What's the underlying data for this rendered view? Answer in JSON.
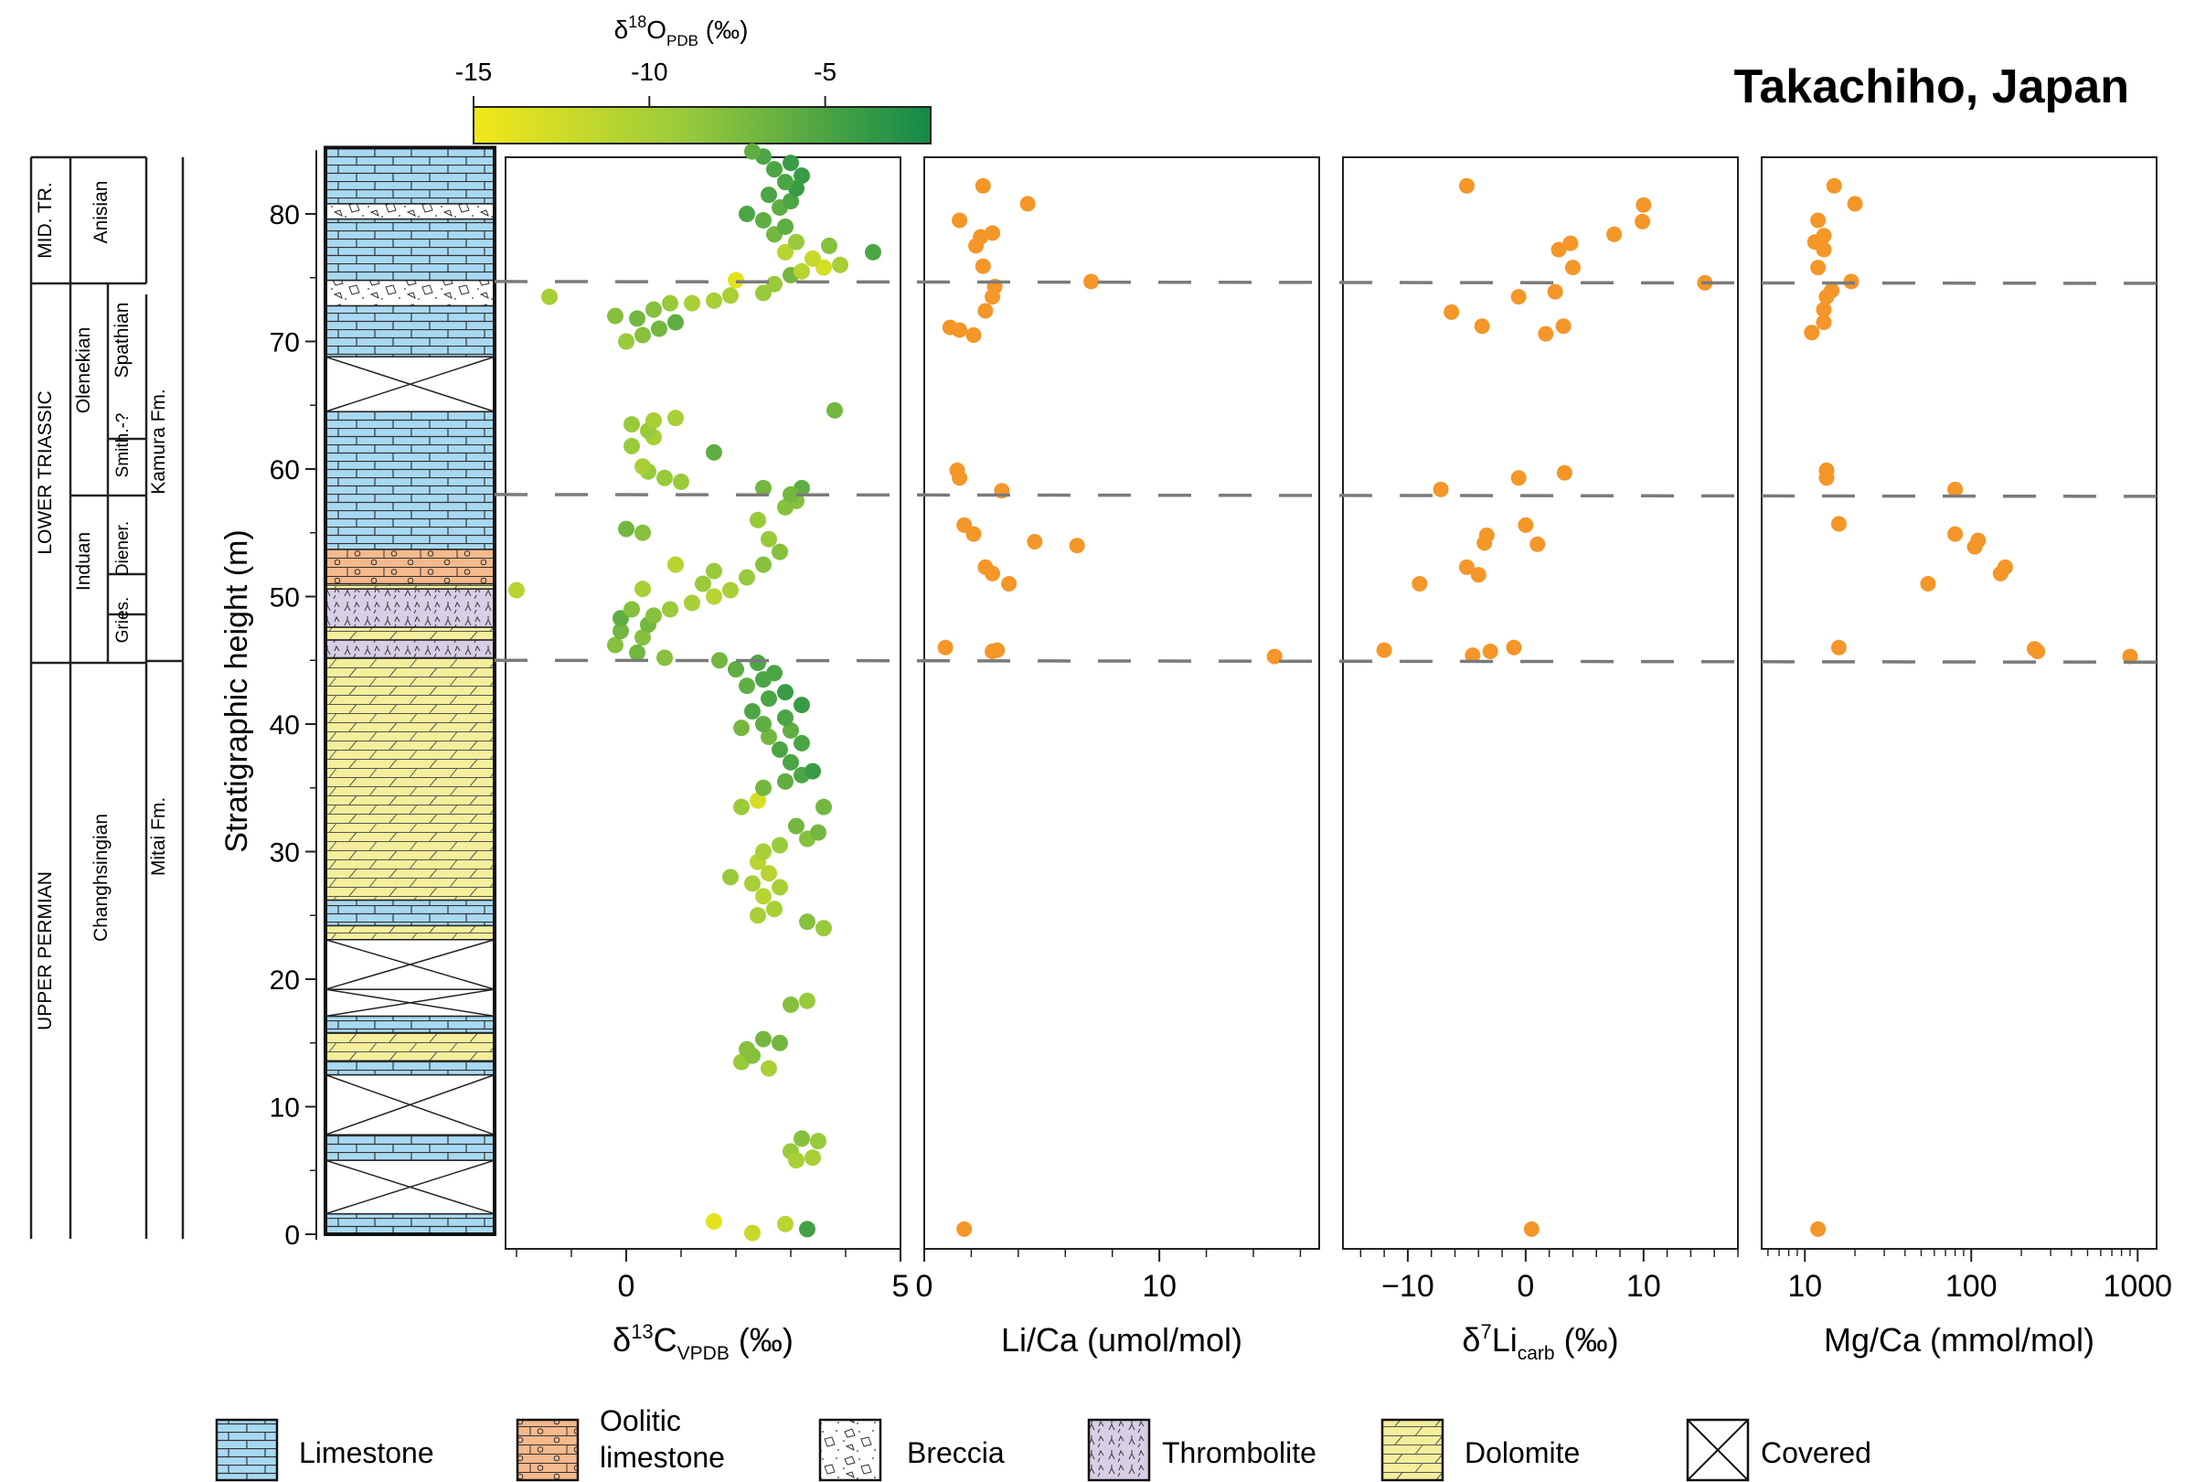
{
  "title": "Takachiho, Japan",
  "colorbar": {
    "label": "δ18O_PDB (‰)",
    "label_main": "δ",
    "label_sup": "18",
    "label_base": "O",
    "label_sub": "PDB",
    "label_unit": " (‰)",
    "ticks": [
      {
        "value": -15,
        "label": "-15"
      },
      {
        "value": -10,
        "label": "-10"
      },
      {
        "value": -5,
        "label": "-5"
      }
    ],
    "range": [
      -15,
      -2
    ],
    "color_low": "#f2e81a",
    "color_mid": "#9ccb3b",
    "color_high": "#13894a"
  },
  "y_axis": {
    "label": "Stratigraphic height (m)",
    "range": [
      0,
      85
    ],
    "ticks": [
      "0",
      "10",
      "20",
      "30",
      "40",
      "50",
      "60",
      "70",
      "80"
    ]
  },
  "stratigraphy": {
    "systems": [
      "MID. TR.",
      "LOWER TRIASSIC",
      "UPPER PERMIAN"
    ],
    "stages": [
      "Anisian",
      "Olenekian",
      "Induan",
      "Changhsingian"
    ],
    "substages": [
      "Spathian",
      "Smith.-?",
      "Diener.",
      "Gries."
    ],
    "formations": [
      "Kamura Fm.",
      "Mitai Fm."
    ]
  },
  "dashed_lines_m": [
    45,
    58,
    74.7
  ],
  "legend": [
    {
      "label": "Limestone",
      "pattern": "limestone"
    },
    {
      "label": "Oolitic\nlimestone",
      "pattern": "oolitic"
    },
    {
      "label": "Breccia",
      "pattern": "breccia"
    },
    {
      "label": "Thrombolite",
      "pattern": "thrombolite"
    },
    {
      "label": "Dolomite",
      "pattern": "dolomite"
    },
    {
      "label": "Covered",
      "pattern": "covered"
    }
  ],
  "lithology_column": [
    {
      "from": 0,
      "to": 1.6,
      "type": "limestone"
    },
    {
      "from": 1.6,
      "to": 5.8,
      "type": "covered"
    },
    {
      "from": 5.8,
      "to": 7.8,
      "type": "limestone"
    },
    {
      "from": 7.8,
      "to": 12.5,
      "type": "covered"
    },
    {
      "from": 12.5,
      "to": 13.6,
      "type": "limestone"
    },
    {
      "from": 13.6,
      "to": 15.8,
      "type": "dolomite"
    },
    {
      "from": 15.8,
      "to": 17.1,
      "type": "limestone"
    },
    {
      "from": 17.1,
      "to": 19.2,
      "type": "covered"
    },
    {
      "from": 19.2,
      "to": 23.1,
      "type": "covered"
    },
    {
      "from": 23.1,
      "to": 24.2,
      "type": "dolomite"
    },
    {
      "from": 24.2,
      "to": 26.2,
      "type": "limestone"
    },
    {
      "from": 26.2,
      "to": 45.2,
      "type": "dolomite"
    },
    {
      "from": 45.2,
      "to": 46.6,
      "type": "thrombolite"
    },
    {
      "from": 46.6,
      "to": 47.6,
      "type": "dolomite"
    },
    {
      "from": 47.6,
      "to": 50.6,
      "type": "thrombolite"
    },
    {
      "from": 50.6,
      "to": 51.0,
      "type": "dolomite"
    },
    {
      "from": 51.0,
      "to": 53.7,
      "type": "oolitic"
    },
    {
      "from": 53.7,
      "to": 64.5,
      "type": "limestone"
    },
    {
      "from": 64.5,
      "to": 68.8,
      "type": "covered"
    },
    {
      "from": 68.8,
      "to": 72.8,
      "type": "limestone"
    },
    {
      "from": 72.8,
      "to": 74.8,
      "type": "breccia"
    },
    {
      "from": 74.8,
      "to": 79.6,
      "type": "limestone"
    },
    {
      "from": 79.6,
      "to": 80.8,
      "type": "breccia"
    },
    {
      "from": 80.8,
      "to": 85.2,
      "type": "limestone"
    }
  ],
  "chart_data": [
    {
      "type": "scatter",
      "xlabel": "δ13C_VPDB (‰)",
      "xlabel_main": "δ",
      "xlabel_sup": "13",
      "xlabel_base": "C",
      "xlabel_sub": "VPDB",
      "xlabel_unit": " (‰)",
      "xlim": [
        -2.2,
        5.0
      ],
      "xticks": [
        {
          "value": 0,
          "label": "0"
        },
        {
          "value": 5,
          "label": "5"
        }
      ],
      "minor_step": 1,
      "color_by": "δ18O",
      "points": [
        [
          3.3,
          0.4,
          -4.5
        ],
        [
          2.3,
          0.1,
          -12
        ],
        [
          1.6,
          1.0,
          -14
        ],
        [
          2.9,
          0.8,
          -11
        ],
        [
          3.0,
          6.5,
          -9
        ],
        [
          3.2,
          7.5,
          -8
        ],
        [
          3.5,
          7.3,
          -9
        ],
        [
          3.4,
          6.0,
          -10
        ],
        [
          3.1,
          5.8,
          -10
        ],
        [
          2.1,
          13.5,
          -9
        ],
        [
          2.5,
          15.3,
          -7
        ],
        [
          2.3,
          14.0,
          -8
        ],
        [
          2.6,
          13.0,
          -10
        ],
        [
          2.8,
          15.0,
          -7
        ],
        [
          2.2,
          14.5,
          -8
        ],
        [
          3.0,
          18.0,
          -8
        ],
        [
          3.3,
          18.3,
          -9
        ],
        [
          3.6,
          24.0,
          -9
        ],
        [
          3.3,
          24.5,
          -8
        ],
        [
          2.4,
          25.0,
          -10
        ],
        [
          2.7,
          25.5,
          -10
        ],
        [
          2.5,
          26.5,
          -11
        ],
        [
          2.8,
          27.2,
          -10
        ],
        [
          2.3,
          27.5,
          -10
        ],
        [
          1.9,
          28.0,
          -9
        ],
        [
          2.6,
          28.3,
          -11
        ],
        [
          2.4,
          29.2,
          -11
        ],
        [
          2.5,
          30.0,
          -10
        ],
        [
          2.8,
          30.5,
          -9
        ],
        [
          3.3,
          31.0,
          -8
        ],
        [
          3.5,
          31.5,
          -7
        ],
        [
          3.1,
          32.0,
          -7
        ],
        [
          3.6,
          33.5,
          -7
        ],
        [
          2.1,
          33.5,
          -9
        ],
        [
          2.4,
          34.0,
          -13
        ],
        [
          2.5,
          35.0,
          -7
        ],
        [
          2.9,
          35.5,
          -6
        ],
        [
          3.2,
          36.0,
          -5
        ],
        [
          3.4,
          36.3,
          -4
        ],
        [
          3.0,
          37.0,
          -5
        ],
        [
          2.8,
          38.0,
          -5
        ],
        [
          3.2,
          38.5,
          -5
        ],
        [
          2.6,
          39.0,
          -7
        ],
        [
          3.0,
          39.5,
          -6
        ],
        [
          2.1,
          39.7,
          -7
        ],
        [
          2.5,
          40.0,
          -6
        ],
        [
          2.9,
          40.5,
          -5
        ],
        [
          3.2,
          41.5,
          -4
        ],
        [
          2.3,
          41.0,
          -5
        ],
        [
          2.6,
          42.0,
          -5
        ],
        [
          2.9,
          42.5,
          -4
        ],
        [
          2.2,
          43.0,
          -6
        ],
        [
          2.5,
          43.5,
          -5
        ],
        [
          2.7,
          44.0,
          -5
        ],
        [
          2.0,
          44.3,
          -6
        ],
        [
          2.4,
          44.8,
          -5
        ],
        [
          1.7,
          45.0,
          -7
        ],
        [
          0.7,
          45.2,
          -8
        ],
        [
          0.2,
          45.6,
          -7
        ],
        [
          -0.2,
          46.2,
          -8
        ],
        [
          0.3,
          46.8,
          -8
        ],
        [
          -0.1,
          47.3,
          -7
        ],
        [
          0.4,
          47.8,
          -7
        ],
        [
          -0.1,
          48.3,
          -6
        ],
        [
          0.5,
          48.5,
          -8
        ],
        [
          0.1,
          49.0,
          -8
        ],
        [
          0.8,
          49.0,
          -9
        ],
        [
          -2.0,
          50.5,
          -11
        ],
        [
          1.2,
          49.5,
          -10
        ],
        [
          1.6,
          50.0,
          -11
        ],
        [
          1.9,
          50.5,
          -10
        ],
        [
          1.4,
          51.0,
          -9
        ],
        [
          2.2,
          51.5,
          -9
        ],
        [
          0.3,
          50.6,
          -10
        ],
        [
          1.6,
          52.0,
          -9
        ],
        [
          2.5,
          52.5,
          -8
        ],
        [
          0.9,
          52.5,
          -11
        ],
        [
          2.8,
          53.5,
          -8
        ],
        [
          2.6,
          54.5,
          -9
        ],
        [
          0.3,
          55.0,
          -8
        ],
        [
          0.0,
          55.3,
          -7
        ],
        [
          2.4,
          56.0,
          -9
        ],
        [
          2.9,
          57.0,
          -8
        ],
        [
          3.1,
          57.5,
          -8
        ],
        [
          2.5,
          58.5,
          -7
        ],
        [
          3.2,
          58.5,
          -6
        ],
        [
          3.0,
          58.0,
          -7
        ],
        [
          1.0,
          59.0,
          -9
        ],
        [
          0.7,
          59.3,
          -9
        ],
        [
          0.4,
          59.8,
          -9
        ],
        [
          0.3,
          60.2,
          -10
        ],
        [
          1.6,
          61.3,
          -6
        ],
        [
          0.1,
          61.8,
          -9
        ],
        [
          0.5,
          62.5,
          -10
        ],
        [
          0.4,
          63.0,
          -9
        ],
        [
          0.1,
          63.5,
          -9
        ],
        [
          0.5,
          63.8,
          -10
        ],
        [
          0.9,
          64.0,
          -10
        ],
        [
          3.8,
          64.6,
          -7
        ],
        [
          -1.4,
          73.5,
          -10
        ],
        [
          0.0,
          70.0,
          -9
        ],
        [
          0.3,
          70.5,
          -8
        ],
        [
          0.6,
          71.0,
          -7
        ],
        [
          0.9,
          71.5,
          -6
        ],
        [
          0.2,
          71.8,
          -7
        ],
        [
          -0.2,
          72.0,
          -8
        ],
        [
          0.5,
          72.5,
          -8
        ],
        [
          0.8,
          73.0,
          -9
        ],
        [
          1.2,
          73.0,
          -10
        ],
        [
          1.6,
          73.2,
          -10
        ],
        [
          1.9,
          73.6,
          -10
        ],
        [
          2.5,
          73.8,
          -9
        ],
        [
          2.7,
          74.5,
          -9
        ],
        [
          3.0,
          75.2,
          -7
        ],
        [
          2.0,
          74.8,
          -14
        ],
        [
          3.2,
          75.5,
          -11
        ],
        [
          3.6,
          75.8,
          -13
        ],
        [
          3.9,
          76.0,
          -10
        ],
        [
          3.4,
          76.5,
          -12
        ],
        [
          2.9,
          77.0,
          -11
        ],
        [
          4.5,
          77.0,
          -5
        ],
        [
          3.7,
          77.5,
          -8
        ],
        [
          3.1,
          77.8,
          -9
        ],
        [
          2.7,
          78.4,
          -7
        ],
        [
          2.9,
          79.0,
          -6
        ],
        [
          2.5,
          79.5,
          -6
        ],
        [
          2.2,
          80.0,
          -5
        ],
        [
          2.8,
          80.5,
          -6
        ],
        [
          3.0,
          81.0,
          -5
        ],
        [
          2.6,
          81.5,
          -5
        ],
        [
          3.1,
          82.0,
          -4
        ],
        [
          2.9,
          82.5,
          -5
        ],
        [
          3.2,
          83.0,
          -4
        ],
        [
          2.7,
          83.5,
          -5
        ],
        [
          3.0,
          84.0,
          -4
        ],
        [
          2.5,
          84.5,
          -5
        ],
        [
          2.3,
          84.9,
          -6
        ]
      ]
    },
    {
      "type": "scatter",
      "xlabel": "Li/Ca (umol/mol)",
      "xlim": [
        0,
        16.8
      ],
      "xticks": [
        {
          "value": 0,
          "label": "0"
        },
        {
          "value": 10,
          "label": "10"
        }
      ],
      "minor_step": 2,
      "points": [
        [
          1.7,
          0.4
        ],
        [
          0.9,
          46.0
        ],
        [
          3.1,
          45.8
        ],
        [
          2.9,
          45.7
        ],
        [
          14.9,
          45.3
        ],
        [
          3.6,
          51.0
        ],
        [
          2.9,
          51.8
        ],
        [
          2.6,
          52.3
        ],
        [
          6.5,
          54.0
        ],
        [
          4.7,
          54.3
        ],
        [
          2.1,
          54.9
        ],
        [
          1.7,
          55.6
        ],
        [
          1.5,
          59.3
        ],
        [
          1.4,
          59.9
        ],
        [
          3.3,
          58.3
        ],
        [
          1.1,
          71.1
        ],
        [
          1.5,
          70.9
        ],
        [
          2.1,
          70.5
        ],
        [
          2.6,
          72.4
        ],
        [
          2.9,
          73.5
        ],
        [
          3.0,
          74.3
        ],
        [
          7.1,
          74.7
        ],
        [
          2.5,
          75.9
        ],
        [
          2.2,
          77.5
        ],
        [
          2.4,
          78.2
        ],
        [
          2.9,
          78.5
        ],
        [
          1.5,
          79.5
        ],
        [
          4.4,
          80.8
        ],
        [
          2.5,
          82.2
        ]
      ]
    },
    {
      "type": "scatter",
      "xlabel": "δ7Li_carb (‰)",
      "xlabel_main": "δ",
      "xlabel_sup": "7",
      "xlabel_base": "Li",
      "xlabel_sub": "carb",
      "xlabel_unit": " (‰)",
      "xlim": [
        -15.5,
        18
      ],
      "xticks": [
        {
          "value": -10,
          "label": "−10"
        },
        {
          "value": 0,
          "label": "0"
        },
        {
          "value": 10,
          "label": "10"
        }
      ],
      "minor_step": 2,
      "points": [
        [
          0.5,
          0.4
        ],
        [
          -12,
          45.8
        ],
        [
          -4.5,
          45.4
        ],
        [
          -3,
          45.7
        ],
        [
          -1,
          46.0
        ],
        [
          -9,
          51.0
        ],
        [
          -4,
          51.7
        ],
        [
          -5,
          52.3
        ],
        [
          -3.5,
          54.2
        ],
        [
          -3.3,
          54.8
        ],
        [
          1.0,
          54.1
        ],
        [
          0.0,
          55.6
        ],
        [
          -7.2,
          58.4
        ],
        [
          -0.6,
          59.3
        ],
        [
          3.3,
          59.7
        ],
        [
          -6.3,
          72.3
        ],
        [
          -3.7,
          71.2
        ],
        [
          1.7,
          70.6
        ],
        [
          3.2,
          71.2
        ],
        [
          -0.6,
          73.5
        ],
        [
          2.5,
          73.9
        ],
        [
          15.2,
          74.6
        ],
        [
          4.0,
          75.8
        ],
        [
          2.8,
          77.2
        ],
        [
          3.8,
          77.7
        ],
        [
          7.5,
          78.4
        ],
        [
          9.9,
          79.4
        ],
        [
          10.0,
          80.7
        ],
        [
          -5.0,
          82.2
        ]
      ]
    },
    {
      "type": "scatter",
      "xlabel": "Mg/Ca (mmol/mol)",
      "xscale": "log",
      "xlim": [
        5.5,
        1300
      ],
      "xticks": [
        {
          "value": 10,
          "label": "10"
        },
        {
          "value": 100,
          "label": "100"
        },
        {
          "value": 1000,
          "label": "1000"
        }
      ],
      "points": [
        [
          12,
          0.4
        ],
        [
          16,
          46.0
        ],
        [
          250,
          45.7
        ],
        [
          900,
          45.3
        ],
        [
          240,
          45.9
        ],
        [
          55,
          51.0
        ],
        [
          150,
          51.8
        ],
        [
          160,
          52.3
        ],
        [
          105,
          53.9
        ],
        [
          110,
          54.4
        ],
        [
          80,
          54.9
        ],
        [
          16,
          55.7
        ],
        [
          13.5,
          59.3
        ],
        [
          13.5,
          59.9
        ],
        [
          80,
          58.4
        ],
        [
          11,
          70.7
        ],
        [
          13,
          71.5
        ],
        [
          13,
          72.5
        ],
        [
          13.5,
          73.5
        ],
        [
          14.5,
          74.0
        ],
        [
          19,
          74.7
        ],
        [
          12,
          75.8
        ],
        [
          13,
          77.2
        ],
        [
          11.5,
          77.8
        ],
        [
          13,
          78.3
        ],
        [
          12,
          79.5
        ],
        [
          20,
          80.8
        ],
        [
          15,
          82.2
        ]
      ]
    }
  ]
}
